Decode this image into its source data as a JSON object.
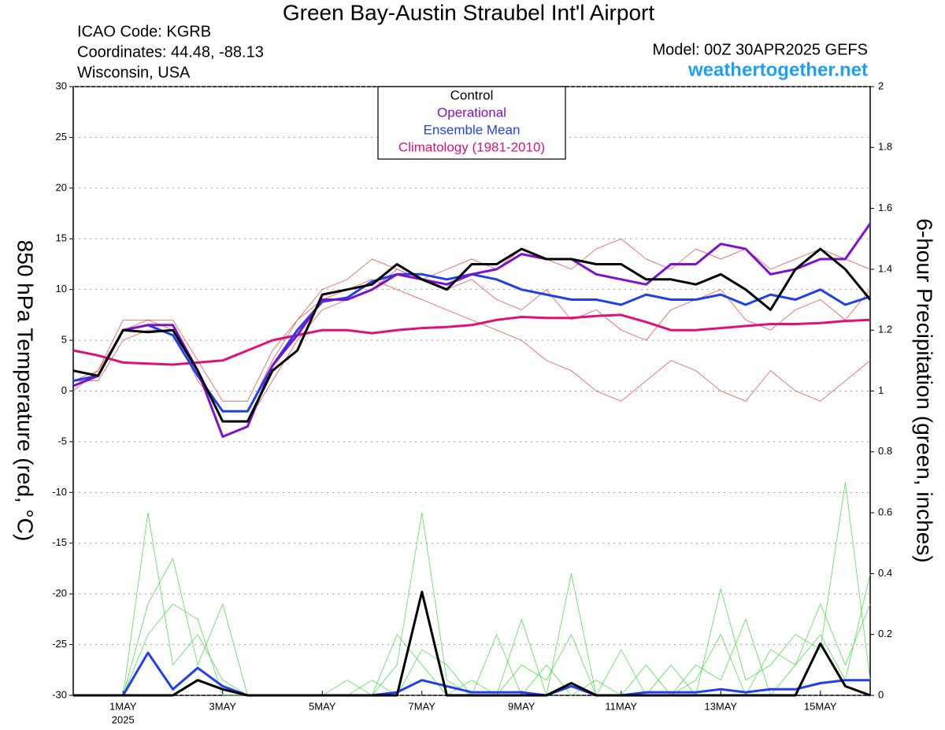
{
  "chart_data": {
    "type": "line",
    "title": "Green Bay-Austin Straubel Int'l Airport",
    "info_left": [
      "ICAO Code: KGRB",
      "Coordinates: 44.48, -88.13",
      "Wisconsin, USA"
    ],
    "model": "Model: 00Z 30APR2025 GEFS",
    "source": "weathertogether.net",
    "ylabel": "850 hPa Temperature (red, °C)",
    "y2label": "6-hour Precipitation (green, inches)",
    "year": "2025",
    "x": [
      0,
      12,
      24,
      36,
      48,
      60,
      72,
      84,
      96,
      108,
      120,
      132,
      144,
      156,
      168,
      180,
      192,
      204,
      216,
      228,
      240,
      252,
      264,
      276,
      288,
      300,
      312,
      324,
      336,
      348,
      360,
      372,
      384
    ],
    "xlim": [
      0,
      384
    ],
    "xticks": [
      {
        "value": 24,
        "label": "1MAY"
      },
      {
        "value": 72,
        "label": "3MAY"
      },
      {
        "value": 120,
        "label": "5MAY"
      },
      {
        "value": 168,
        "label": "7MAY"
      },
      {
        "value": 216,
        "label": "9MAY"
      },
      {
        "value": 264,
        "label": "11MAY"
      },
      {
        "value": 312,
        "label": "13MAY"
      },
      {
        "value": 360,
        "label": "15MAY"
      }
    ],
    "ylim": [
      -30,
      30
    ],
    "yticks": [
      -30,
      -25,
      -20,
      -15,
      -10,
      -5,
      0,
      5,
      10,
      15,
      20,
      25,
      30
    ],
    "y2lim": [
      0,
      2
    ],
    "y2ticks": [
      0,
      0.2,
      0.4,
      0.6,
      0.8,
      1,
      1.2,
      1.4,
      1.6,
      1.8,
      2
    ],
    "grid": true,
    "legend": "top-center",
    "series": [
      {
        "color": "#3cdc3c",
        "axis": "y2",
        "values": [
          0,
          0,
          0,
          0.6,
          0.1,
          0.2,
          0.05,
          0,
          0,
          0,
          0,
          0,
          0,
          0.1,
          0.6,
          0.05,
          0,
          0,
          0.1,
          0.05,
          0.2,
          0,
          0,
          0,
          0.1,
          0,
          0.35,
          0.05,
          0.1,
          0.2,
          0.15,
          0.7,
          0.05
        ]
      },
      {
        "color": "#3cdc3c",
        "axis": "y2",
        "values": [
          0,
          0,
          0,
          0.3,
          0.45,
          0.1,
          0.3,
          0,
          0,
          0,
          0,
          0.05,
          0,
          0.2,
          0.1,
          0,
          0.05,
          0,
          0.25,
          0,
          0.4,
          0,
          0.15,
          0,
          0,
          0.05,
          0.2,
          0,
          0.15,
          0.1,
          0.3,
          0.1,
          0.3
        ]
      },
      {
        "color": "#3cdc3c",
        "axis": "y2",
        "values": [
          0,
          0,
          0,
          0.2,
          0.3,
          0.25,
          0,
          0,
          0,
          0,
          0,
          0,
          0.05,
          0,
          0.15,
          0.1,
          0,
          0.2,
          0,
          0.1,
          0,
          0.05,
          0,
          0.1,
          0,
          0.1,
          0.05,
          0.25,
          0,
          0.1,
          0.2,
          0.05,
          0.4
        ]
      },
      {
        "color": "#f04030",
        "values": [
          1,
          2,
          7,
          7,
          6,
          1,
          -2,
          -2,
          3,
          7,
          10,
          11,
          13,
          12,
          11,
          12,
          13,
          12,
          14,
          13,
          12,
          14,
          15,
          13,
          12,
          14,
          13,
          14,
          12,
          13,
          14,
          13,
          12
        ]
      },
      {
        "color": "#f04030",
        "values": [
          0,
          2,
          6,
          7,
          7,
          3,
          -1,
          -1,
          4,
          7,
          9,
          10,
          11,
          10,
          9,
          8,
          7,
          6,
          5,
          3,
          2,
          0,
          -1,
          1,
          3,
          2,
          0,
          -1,
          2,
          0,
          -1,
          1,
          3
        ]
      },
      {
        "color": "#f04030",
        "values": [
          1,
          1,
          5,
          6,
          6,
          2,
          -3,
          -3,
          1,
          5,
          8,
          9,
          10,
          12,
          11,
          10,
          11,
          9,
          8,
          10,
          7,
          8,
          6,
          5,
          8,
          9,
          10,
          7,
          6,
          8,
          9,
          7,
          10
        ]
      },
      {
        "name": "Control",
        "color": "#000000",
        "axis": "y2",
        "values": [
          0,
          0,
          0,
          0,
          0,
          0.05,
          0.02,
          0,
          0,
          0,
          0,
          0,
          0,
          0,
          0.34,
          0,
          0,
          0,
          0,
          0,
          0.04,
          0,
          0,
          0,
          0,
          0,
          0,
          0,
          0,
          0,
          0.17,
          0.03,
          0
        ]
      },
      {
        "name": "Ensemble Mean",
        "color": "#2040f0",
        "axis": "y2",
        "values": [
          0,
          0,
          0,
          0.14,
          0.02,
          0.09,
          0.03,
          0,
          0,
          0,
          0,
          0,
          0,
          0.01,
          0.05,
          0.03,
          0.01,
          0.01,
          0.01,
          0,
          0.03,
          0,
          0,
          0.01,
          0.01,
          0.01,
          0.02,
          0.01,
          0.02,
          0.02,
          0.04,
          0.05,
          0.05
        ]
      },
      {
        "name": "Control",
        "color": "#000000",
        "values": [
          2,
          1.5,
          6,
          5.8,
          6,
          2,
          -3,
          -3,
          2,
          4,
          9.5,
          10,
          10.5,
          12.5,
          11,
          10,
          12.5,
          12.5,
          14,
          13,
          13,
          12.5,
          12.5,
          11,
          11,
          10.5,
          11.5,
          10,
          8,
          12,
          14,
          12,
          9
        ]
      },
      {
        "name": "Operational",
        "color": "#8010d0",
        "values": [
          0.5,
          1.5,
          6,
          6.5,
          6.5,
          2,
          -4.5,
          -3.5,
          2.5,
          5.5,
          9,
          9,
          10,
          11.5,
          11,
          10.5,
          11.5,
          12,
          13.5,
          13,
          13,
          11.5,
          11,
          10.5,
          12.5,
          12.5,
          14.5,
          14,
          11.5,
          12,
          13,
          13,
          16.5
        ]
      },
      {
        "name": "Ensemble Mean",
        "color": "#2040f0",
        "values": [
          1,
          1.5,
          6,
          6.5,
          5.5,
          1.5,
          -2,
          -2,
          2.5,
          6,
          8.8,
          9.2,
          10.8,
          11.5,
          11.5,
          11,
          11.5,
          11,
          10,
          9.5,
          9,
          9,
          8.5,
          9.5,
          9,
          9,
          9.5,
          8.5,
          9.5,
          9,
          10,
          8.5,
          9.3
        ]
      },
      {
        "name": "Climatology (1981-2010)",
        "color": "#e0107a",
        "values": [
          4,
          3.5,
          2.8,
          2.7,
          2.6,
          2.8,
          3,
          4,
          5,
          5.5,
          6,
          6,
          5.7,
          6,
          6.2,
          6.3,
          6.5,
          7,
          7.3,
          7.2,
          7.2,
          7.4,
          7.5,
          6.8,
          6,
          6,
          6.2,
          6.4,
          6.6,
          6.6,
          6.7,
          6.9,
          7
        ]
      }
    ]
  }
}
